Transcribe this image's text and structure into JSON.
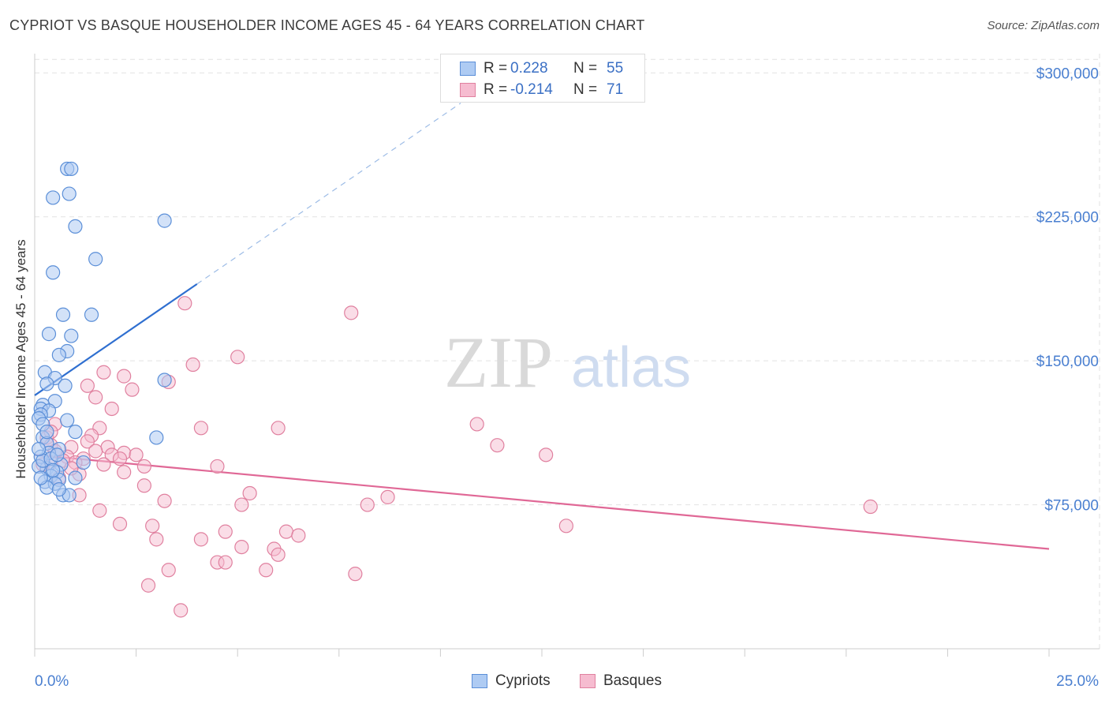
{
  "title": "CYPRIOT VS BASQUE HOUSEHOLDER INCOME AGES 45 - 64 YEARS CORRELATION CHART",
  "source": "Source: ZipAtlas.com",
  "watermark": {
    "zip": "ZIP",
    "atlas": "atlas"
  },
  "colors": {
    "blue_fill": "#aecbf3",
    "blue_stroke": "#5b8fd8",
    "blue_line": "#2f6fd0",
    "pink_fill": "#f6bcd0",
    "pink_stroke": "#e0809f",
    "pink_line": "#e06896",
    "axis_text": "#4a7fd0",
    "grid": "#e2e2e2"
  },
  "legend": {
    "rows": [
      {
        "series": "Cypriots",
        "r_label": "R =",
        "r_value": "0.228",
        "n_label": "N =",
        "n_value": "55"
      },
      {
        "series": "Basques",
        "r_label": "R =",
        "r_value": "-0.214",
        "n_label": "N =",
        "n_value": "71"
      }
    ]
  },
  "bottom_legend": [
    "Cypriots",
    "Basques"
  ],
  "chart_data": {
    "type": "scatter",
    "title": "CYPRIOT VS BASQUE HOUSEHOLDER INCOME AGES 45 - 64 YEARS CORRELATION CHART",
    "xlabel": "",
    "ylabel": "Householder Income Ages 45 - 64 years",
    "xlim": [
      0,
      25
    ],
    "ylim": [
      0,
      310000
    ],
    "x_tick_labels": [
      "0.0%",
      "25.0%"
    ],
    "y_ticks": [
      75000,
      150000,
      225000,
      300000
    ],
    "y_tick_labels": [
      "$75,000",
      "$150,000",
      "$225,000",
      "$300,000"
    ],
    "grid": true,
    "series": [
      {
        "name": "Cypriots",
        "trend": {
          "x0": 0.0,
          "y0": 132000,
          "x1": 4.0,
          "y1": 190000,
          "dashed_to_x": 10.5
        },
        "points": [
          [
            0.8,
            250000
          ],
          [
            0.9,
            250000
          ],
          [
            0.85,
            237000
          ],
          [
            0.45,
            235000
          ],
          [
            1.0,
            220000
          ],
          [
            3.2,
            223000
          ],
          [
            1.5,
            203000
          ],
          [
            0.45,
            196000
          ],
          [
            0.7,
            174000
          ],
          [
            1.4,
            174000
          ],
          [
            0.35,
            164000
          ],
          [
            0.9,
            163000
          ],
          [
            0.8,
            155000
          ],
          [
            0.6,
            153000
          ],
          [
            0.25,
            144000
          ],
          [
            0.5,
            141000
          ],
          [
            0.3,
            138000
          ],
          [
            0.75,
            137000
          ],
          [
            3.2,
            140000
          ],
          [
            0.5,
            129000
          ],
          [
            0.2,
            127000
          ],
          [
            0.15,
            125000
          ],
          [
            0.35,
            124000
          ],
          [
            0.15,
            122000
          ],
          [
            0.1,
            120000
          ],
          [
            0.8,
            119000
          ],
          [
            0.2,
            117000
          ],
          [
            1.0,
            113000
          ],
          [
            3.0,
            110000
          ],
          [
            0.2,
            110000
          ],
          [
            0.3,
            107000
          ],
          [
            0.6,
            104000
          ],
          [
            0.35,
            102000
          ],
          [
            0.15,
            100000
          ],
          [
            1.2,
            97000
          ],
          [
            0.65,
            96000
          ],
          [
            0.3,
            94000
          ],
          [
            0.55,
            92000
          ],
          [
            0.4,
            90000
          ],
          [
            1.0,
            89000
          ],
          [
            0.6,
            88000
          ],
          [
            0.25,
            87000
          ],
          [
            0.5,
            86000
          ],
          [
            0.3,
            84000
          ],
          [
            0.7,
            80000
          ],
          [
            0.85,
            80000
          ],
          [
            0.1,
            95000
          ],
          [
            0.2,
            98000
          ],
          [
            0.4,
            99000
          ],
          [
            0.55,
            101000
          ],
          [
            0.15,
            89000
          ],
          [
            0.45,
            93000
          ],
          [
            0.1,
            104000
          ],
          [
            0.6,
            83000
          ],
          [
            0.3,
            113000
          ]
        ]
      },
      {
        "name": "Basques",
        "trend": {
          "x0": 0.0,
          "y0": 101000,
          "x1": 25.0,
          "y1": 52000
        },
        "points": [
          [
            3.7,
            180000
          ],
          [
            7.8,
            175000
          ],
          [
            5.0,
            152000
          ],
          [
            3.9,
            148000
          ],
          [
            1.7,
            144000
          ],
          [
            2.2,
            142000
          ],
          [
            3.3,
            139000
          ],
          [
            1.3,
            137000
          ],
          [
            2.4,
            135000
          ],
          [
            1.5,
            131000
          ],
          [
            1.9,
            125000
          ],
          [
            0.5,
            117000
          ],
          [
            1.6,
            115000
          ],
          [
            4.1,
            115000
          ],
          [
            6.0,
            115000
          ],
          [
            10.9,
            117000
          ],
          [
            1.4,
            111000
          ],
          [
            0.3,
            110000
          ],
          [
            1.3,
            108000
          ],
          [
            0.4,
            106000
          ],
          [
            11.4,
            106000
          ],
          [
            1.8,
            105000
          ],
          [
            0.9,
            105000
          ],
          [
            0.5,
            103000
          ],
          [
            2.2,
            102000
          ],
          [
            1.9,
            101000
          ],
          [
            12.6,
            101000
          ],
          [
            0.8,
            100000
          ],
          [
            1.2,
            99000
          ],
          [
            2.1,
            99000
          ],
          [
            0.4,
            97000
          ],
          [
            1.0,
            97000
          ],
          [
            1.7,
            96000
          ],
          [
            2.7,
            95000
          ],
          [
            4.5,
            95000
          ],
          [
            2.2,
            92000
          ],
          [
            1.1,
            91000
          ],
          [
            0.6,
            89000
          ],
          [
            2.7,
            85000
          ],
          [
            5.3,
            81000
          ],
          [
            1.1,
            80000
          ],
          [
            8.7,
            79000
          ],
          [
            3.2,
            77000
          ],
          [
            5.1,
            75000
          ],
          [
            8.2,
            75000
          ],
          [
            20.6,
            74000
          ],
          [
            1.6,
            72000
          ],
          [
            2.1,
            65000
          ],
          [
            2.9,
            64000
          ],
          [
            13.1,
            64000
          ],
          [
            4.7,
            61000
          ],
          [
            6.2,
            61000
          ],
          [
            6.5,
            59000
          ],
          [
            3.0,
            57000
          ],
          [
            4.1,
            57000
          ],
          [
            5.1,
            53000
          ],
          [
            5.9,
            52000
          ],
          [
            6.0,
            49000
          ],
          [
            4.5,
            45000
          ],
          [
            4.7,
            45000
          ],
          [
            3.3,
            41000
          ],
          [
            5.7,
            41000
          ],
          [
            7.9,
            39000
          ],
          [
            2.8,
            33000
          ],
          [
            3.6,
            20000
          ],
          [
            0.2,
            96000
          ],
          [
            0.7,
            98000
          ],
          [
            0.9,
            94000
          ],
          [
            1.5,
            103000
          ],
          [
            2.5,
            101000
          ],
          [
            0.4,
            113000
          ]
        ]
      }
    ]
  }
}
